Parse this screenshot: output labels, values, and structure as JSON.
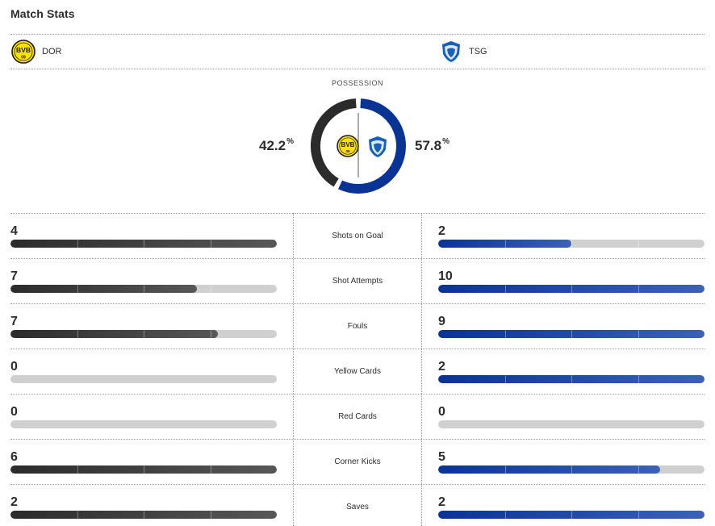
{
  "header": {
    "title": "Match Stats"
  },
  "teams": {
    "home": {
      "abbr": "DOR",
      "logo_icon": "bvb-crest",
      "logo_text": "BVB",
      "logo_sub": "09",
      "color": "#2b2b2b"
    },
    "away": {
      "abbr": "TSG",
      "logo_icon": "hoffenheim-crest",
      "color": "#0a3494"
    }
  },
  "possession": {
    "label": "POSSESSION",
    "home_value": "42.2",
    "away_value": "57.8",
    "unit": "%",
    "home_fraction": 0.422,
    "away_fraction": 0.578
  },
  "stats": [
    {
      "label": "Shots on Goal",
      "home": "4",
      "away": "2",
      "home_fill": 1.0,
      "away_fill": 0.5
    },
    {
      "label": "Shot Attempts",
      "home": "7",
      "away": "10",
      "home_fill": 0.7,
      "away_fill": 1.0
    },
    {
      "label": "Fouls",
      "home": "7",
      "away": "9",
      "home_fill": 0.778,
      "away_fill": 1.0
    },
    {
      "label": "Yellow Cards",
      "home": "0",
      "away": "2",
      "home_fill": 0,
      "away_fill": 1.0
    },
    {
      "label": "Red Cards",
      "home": "0",
      "away": "0",
      "home_fill": 0,
      "away_fill": 0
    },
    {
      "label": "Corner Kicks",
      "home": "6",
      "away": "5",
      "home_fill": 1.0,
      "away_fill": 0.833
    },
    {
      "label": "Saves",
      "home": "2",
      "away": "2",
      "home_fill": 1.0,
      "away_fill": 1.0
    }
  ]
}
